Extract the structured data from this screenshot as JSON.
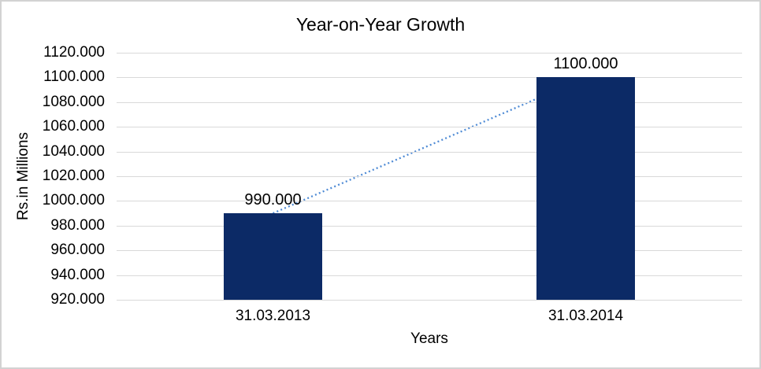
{
  "chart_data": {
    "type": "bar",
    "title": "Year-on-Year Growth",
    "xlabel": "Years",
    "ylabel": "Rs.in Millions",
    "categories": [
      "31.03.2013",
      "31.03.2014"
    ],
    "series": [
      {
        "name": "Year-on-Year Growth",
        "values": [
          990,
          1100
        ],
        "data_labels": [
          "990.000",
          "1100.000"
        ]
      }
    ],
    "trendline": {
      "type": "linear",
      "style": "dotted",
      "endpoints": [
        990,
        1100
      ]
    },
    "ylim": [
      920,
      1120
    ],
    "y_major_unit": 20,
    "y_tick_labels": [
      "1120.000",
      "1100.000",
      "1080.000",
      "1060.000",
      "1040.000",
      "1020.000",
      "1000.000",
      "980.000",
      "960.000",
      "940.000",
      "920.000"
    ],
    "grid": true,
    "legend": "none",
    "colors": {
      "bar": "#0c2a66",
      "trendline": "#4f8bd5",
      "gridline": "#d9d9d9",
      "text": "#000000",
      "chart_border": "#d2d2d2",
      "background": "#ffffff"
    }
  }
}
